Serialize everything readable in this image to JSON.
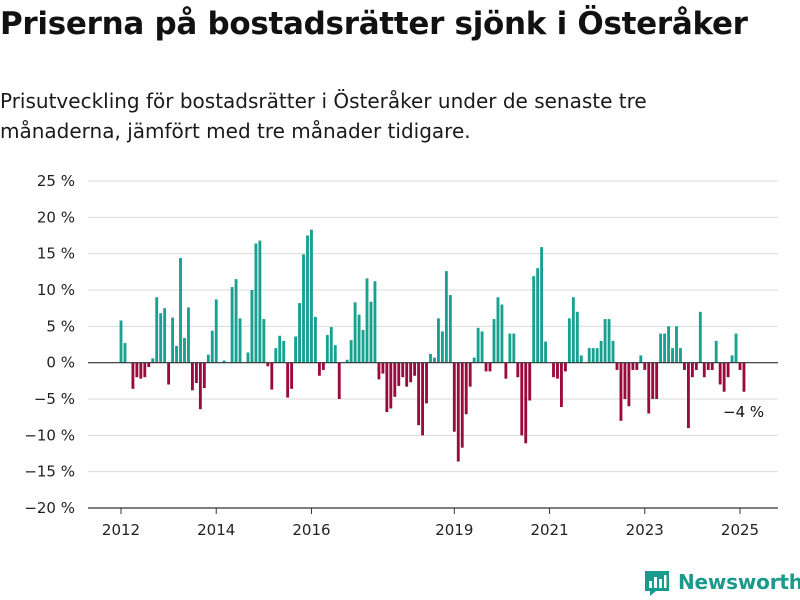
{
  "header": {
    "title": "Priserna på bostadsrätter sjönk i Österåker",
    "subtitle": "Prisutveckling för bostadsrätter i Österåker under de senaste tre månaderna, jämfört med tre månader tidigare."
  },
  "brand": {
    "name": "Newsworthy",
    "icon": "newsworthy-logo-icon"
  },
  "chart_data": {
    "type": "bar",
    "title": "Priserna på bostadsrätter sjönk i Österåker",
    "subtitle": "Prisutveckling för bostadsrätter i Österåker under de senaste tre månaderna, jämfört med tre månader tidigare.",
    "ylim": [
      -20,
      25
    ],
    "y_ticks": [
      25,
      20,
      15,
      10,
      5,
      0,
      -5,
      -10,
      -15,
      -20
    ],
    "y_tick_labels": [
      "25 %",
      "20 %",
      "15 %",
      "10 %",
      "5 %",
      "0 %",
      "−5 %",
      "−10 %",
      "−15 %",
      "−20 %"
    ],
    "x_ticks": [
      {
        "label": "2012",
        "month": "2012-01"
      },
      {
        "label": "2014",
        "month": "2014-01"
      },
      {
        "label": "2016",
        "month": "2016-01"
      },
      {
        "label": "2019",
        "month": "2019-01"
      },
      {
        "label": "2021",
        "month": "2021-01"
      },
      {
        "label": "2023",
        "month": "2023-01"
      },
      {
        "label": "2025",
        "month": "2025-01"
      }
    ],
    "start_month": "2012-01",
    "grid": true,
    "positive_color": "#18a091",
    "negative_color": "#9b0a3c",
    "end_label": "−4 %",
    "values": [
      5.8,
      2.7,
      0,
      -3.6,
      -2.0,
      -2.2,
      -2.0,
      -0.6,
      0.6,
      9.0,
      6.8,
      7.5,
      -3.0,
      6.2,
      2.3,
      14.4,
      3.4,
      7.6,
      -3.8,
      -2.8,
      -6.4,
      -3.5,
      1.1,
      4.4,
      8.7,
      0,
      0.3,
      0,
      10.4,
      11.5,
      6.1,
      0,
      1.4,
      10.0,
      16.4,
      16.8,
      6.0,
      -0.5,
      -3.7,
      2.0,
      3.7,
      3.0,
      -4.8,
      -3.6,
      3.6,
      8.2,
      14.9,
      17.5,
      18.3,
      6.3,
      -1.8,
      -1.0,
      3.8,
      4.9,
      2.4,
      -5.0,
      0,
      0.4,
      3.1,
      8.3,
      6.6,
      4.5,
      11.6,
      8.4,
      11.2,
      -2.3,
      -1.5,
      -6.8,
      -6.3,
      -4.7,
      -3.2,
      -2.0,
      -3.3,
      -2.7,
      -1.8,
      -8.6,
      -10.0,
      -5.6,
      1.2,
      0.7,
      6.1,
      4.3,
      12.6,
      9.3,
      -9.5,
      -13.6,
      -11.7,
      -7.1,
      -3.3,
      0.7,
      4.8,
      4.3,
      -1.2,
      -1.2,
      6.0,
      9.0,
      8.0,
      -2.2,
      4.0,
      4.0,
      -2.0,
      -10.0,
      -11.1,
      -5.2,
      11.9,
      13.0,
      15.9,
      2.9,
      0,
      -2.0,
      -2.2,
      -6.1,
      -1.2,
      6.1,
      9.0,
      7.0,
      1.0,
      0,
      2.0,
      2.0,
      2.0,
      3.0,
      6.0,
      6.0,
      3.0,
      -1.0,
      -8.0,
      -5.0,
      -6.0,
      -1.0,
      -1.0,
      1.0,
      -1.0,
      -7.0,
      -5.0,
      -5.0,
      4.0,
      4.0,
      5.0,
      2.0,
      5.0,
      2.0,
      -1.0,
      -9.0,
      -2.0,
      -1.0,
      7.0,
      -2.0,
      -1.0,
      -1.0,
      3.0,
      -3.0,
      -4.0,
      -2.0,
      1.0,
      4.0,
      -1.0,
      -4.0
    ]
  }
}
